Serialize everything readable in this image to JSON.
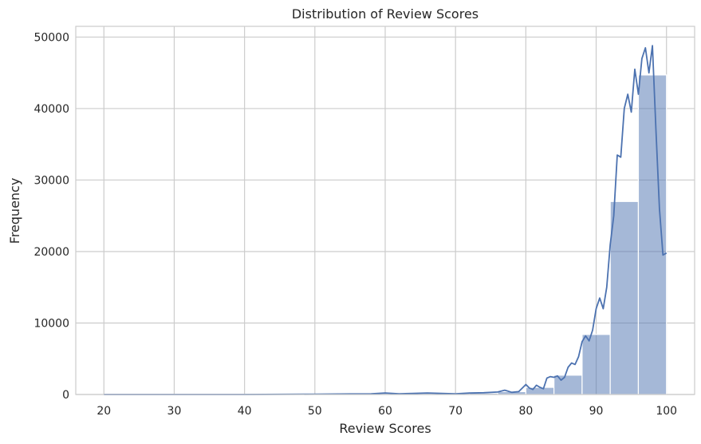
{
  "chart_data": {
    "type": "bar",
    "title": "Distribution of Review Scores",
    "xlabel": "Review Scores",
    "ylabel": "Frequency",
    "xlim": [
      16,
      104
    ],
    "ylim": [
      0,
      51500
    ],
    "x_ticks": [
      20,
      30,
      40,
      50,
      60,
      70,
      80,
      90,
      100
    ],
    "y_ticks": [
      0,
      10000,
      20000,
      30000,
      40000,
      50000
    ],
    "grid": true,
    "bar_color": "#4c72b0",
    "bar_opacity": 0.5,
    "line_color": "#4c72b0",
    "bins": [
      {
        "x0": 20,
        "x1": 24,
        "count": 10
      },
      {
        "x0": 24,
        "x1": 28,
        "count": 5
      },
      {
        "x0": 28,
        "x1": 32,
        "count": 5
      },
      {
        "x0": 32,
        "x1": 36,
        "count": 5
      },
      {
        "x0": 36,
        "x1": 40,
        "count": 5
      },
      {
        "x0": 40,
        "x1": 44,
        "count": 10
      },
      {
        "x0": 44,
        "x1": 48,
        "count": 5
      },
      {
        "x0": 48,
        "x1": 52,
        "count": 10
      },
      {
        "x0": 52,
        "x1": 56,
        "count": 10
      },
      {
        "x0": 56,
        "x1": 60,
        "count": 20
      },
      {
        "x0": 60,
        "x1": 64,
        "count": 60
      },
      {
        "x0": 64,
        "x1": 68,
        "count": 120
      },
      {
        "x0": 68,
        "x1": 72,
        "count": 150
      },
      {
        "x0": 72,
        "x1": 76,
        "count": 200
      },
      {
        "x0": 76,
        "x1": 80,
        "count": 400
      },
      {
        "x0": 80,
        "x1": 84,
        "count": 1000
      },
      {
        "x0": 84,
        "x1": 88,
        "count": 2700
      },
      {
        "x0": 88,
        "x1": 92,
        "count": 8400
      },
      {
        "x0": 92,
        "x1": 96,
        "count": 27000
      },
      {
        "x0": 96,
        "x1": 100,
        "count": 44700
      }
    ],
    "kde_line": {
      "x": [
        20,
        30,
        40,
        50,
        55,
        58,
        60,
        62,
        64,
        66,
        68,
        70,
        72,
        74,
        76,
        77,
        78,
        79,
        80,
        80.5,
        81,
        81.5,
        82,
        82.5,
        83,
        83.5,
        84,
        84.5,
        85,
        85.5,
        86,
        86.5,
        87,
        87.5,
        88,
        88.5,
        89,
        89.5,
        90,
        90.5,
        91,
        91.5,
        92,
        92.5,
        93,
        93.5,
        94,
        94.5,
        95,
        95.5,
        96,
        96.5,
        97,
        97.5,
        98,
        98.5,
        99,
        99.5,
        100
      ],
      "y": [
        0,
        0,
        0,
        50,
        80,
        100,
        200,
        100,
        150,
        200,
        150,
        100,
        200,
        250,
        350,
        600,
        300,
        400,
        1400,
        900,
        700,
        1300,
        1000,
        800,
        2300,
        2500,
        2400,
        2600,
        2000,
        2400,
        3800,
        4400,
        4200,
        5300,
        7400,
        8200,
        7500,
        9000,
        12000,
        13500,
        12000,
        15000,
        21000,
        25000,
        33500,
        33200,
        40000,
        42000,
        39500,
        45500,
        42000,
        47000,
        48500,
        45000,
        48800,
        37000,
        26000,
        19500,
        19800
      ]
    }
  }
}
